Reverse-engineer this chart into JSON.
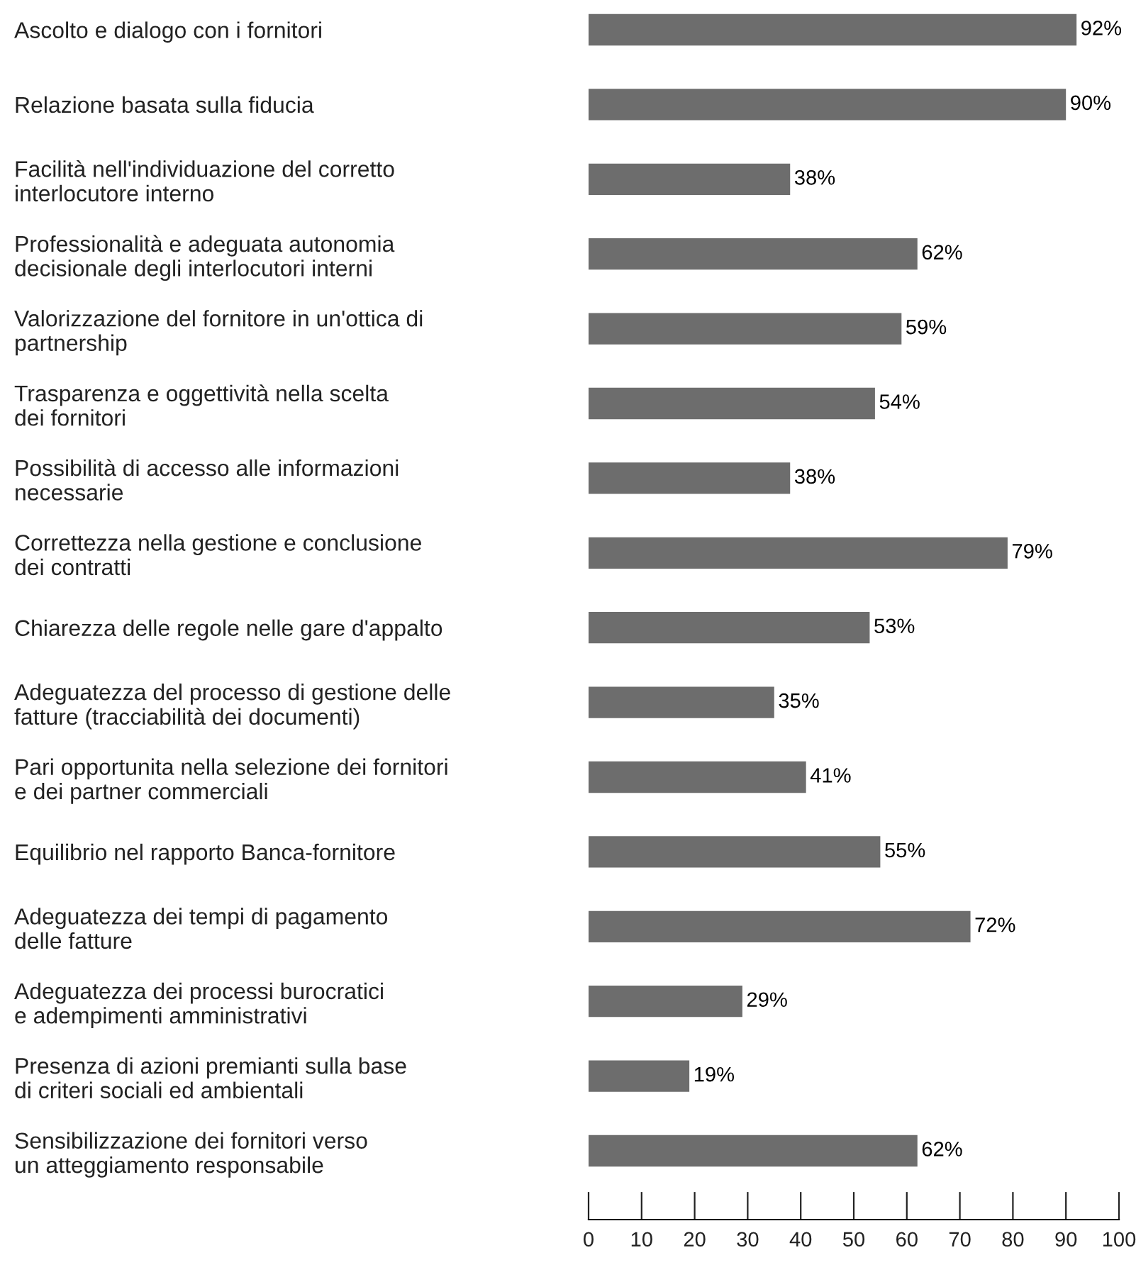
{
  "chart_data": {
    "type": "bar",
    "orientation": "horizontal",
    "categories": [
      "Ascolto e dialogo con i fornitori",
      "Relazione basata sulla fiducia",
      "Facilità nell'individuazione del corretto\ninterlocutore interno",
      "Professionalità e adeguata autonomia\ndecisionale degli interlocutori interni",
      "Valorizzazione del fornitore in un'ottica di\npartnership",
      "Trasparenza e oggettività nella scelta\ndei fornitori",
      "Possibilità di accesso alle informazioni\nnecessarie",
      "Correttezza nella gestione e conclusione\ndei contratti",
      "Chiarezza delle regole nelle gare d'appalto",
      "Adeguatezza del processo di gestione delle\nfatture (tracciabilità dei documenti)",
      "Pari opportunita nella selezione dei fornitori\ne dei partner commerciali",
      "Equilibrio nel rapporto Banca-fornitore",
      "Adeguatezza dei tempi di pagamento\ndelle fatture",
      "Adeguatezza dei processi burocratici\ne adempimenti amministrativi",
      "Presenza di azioni premianti sulla base\ndi criteri sociali ed ambientali",
      "Sensibilizzazione dei fornitori verso\nun atteggiamento responsabile"
    ],
    "values": [
      92,
      90,
      38,
      62,
      59,
      54,
      38,
      79,
      53,
      35,
      41,
      55,
      72,
      29,
      19,
      62
    ],
    "value_labels": [
      "92%",
      "90%",
      "38%",
      "62%",
      "59%",
      "54%",
      "38%",
      "79%",
      "53%",
      "35%",
      "41%",
      "55%",
      "72%",
      "29%",
      "19%",
      "62%"
    ],
    "color": "#6d6d6d",
    "xlim": [
      0,
      100
    ],
    "xticks": [
      0,
      10,
      20,
      30,
      40,
      50,
      60,
      70,
      80,
      90,
      100
    ],
    "grid": false,
    "legend": false
  }
}
